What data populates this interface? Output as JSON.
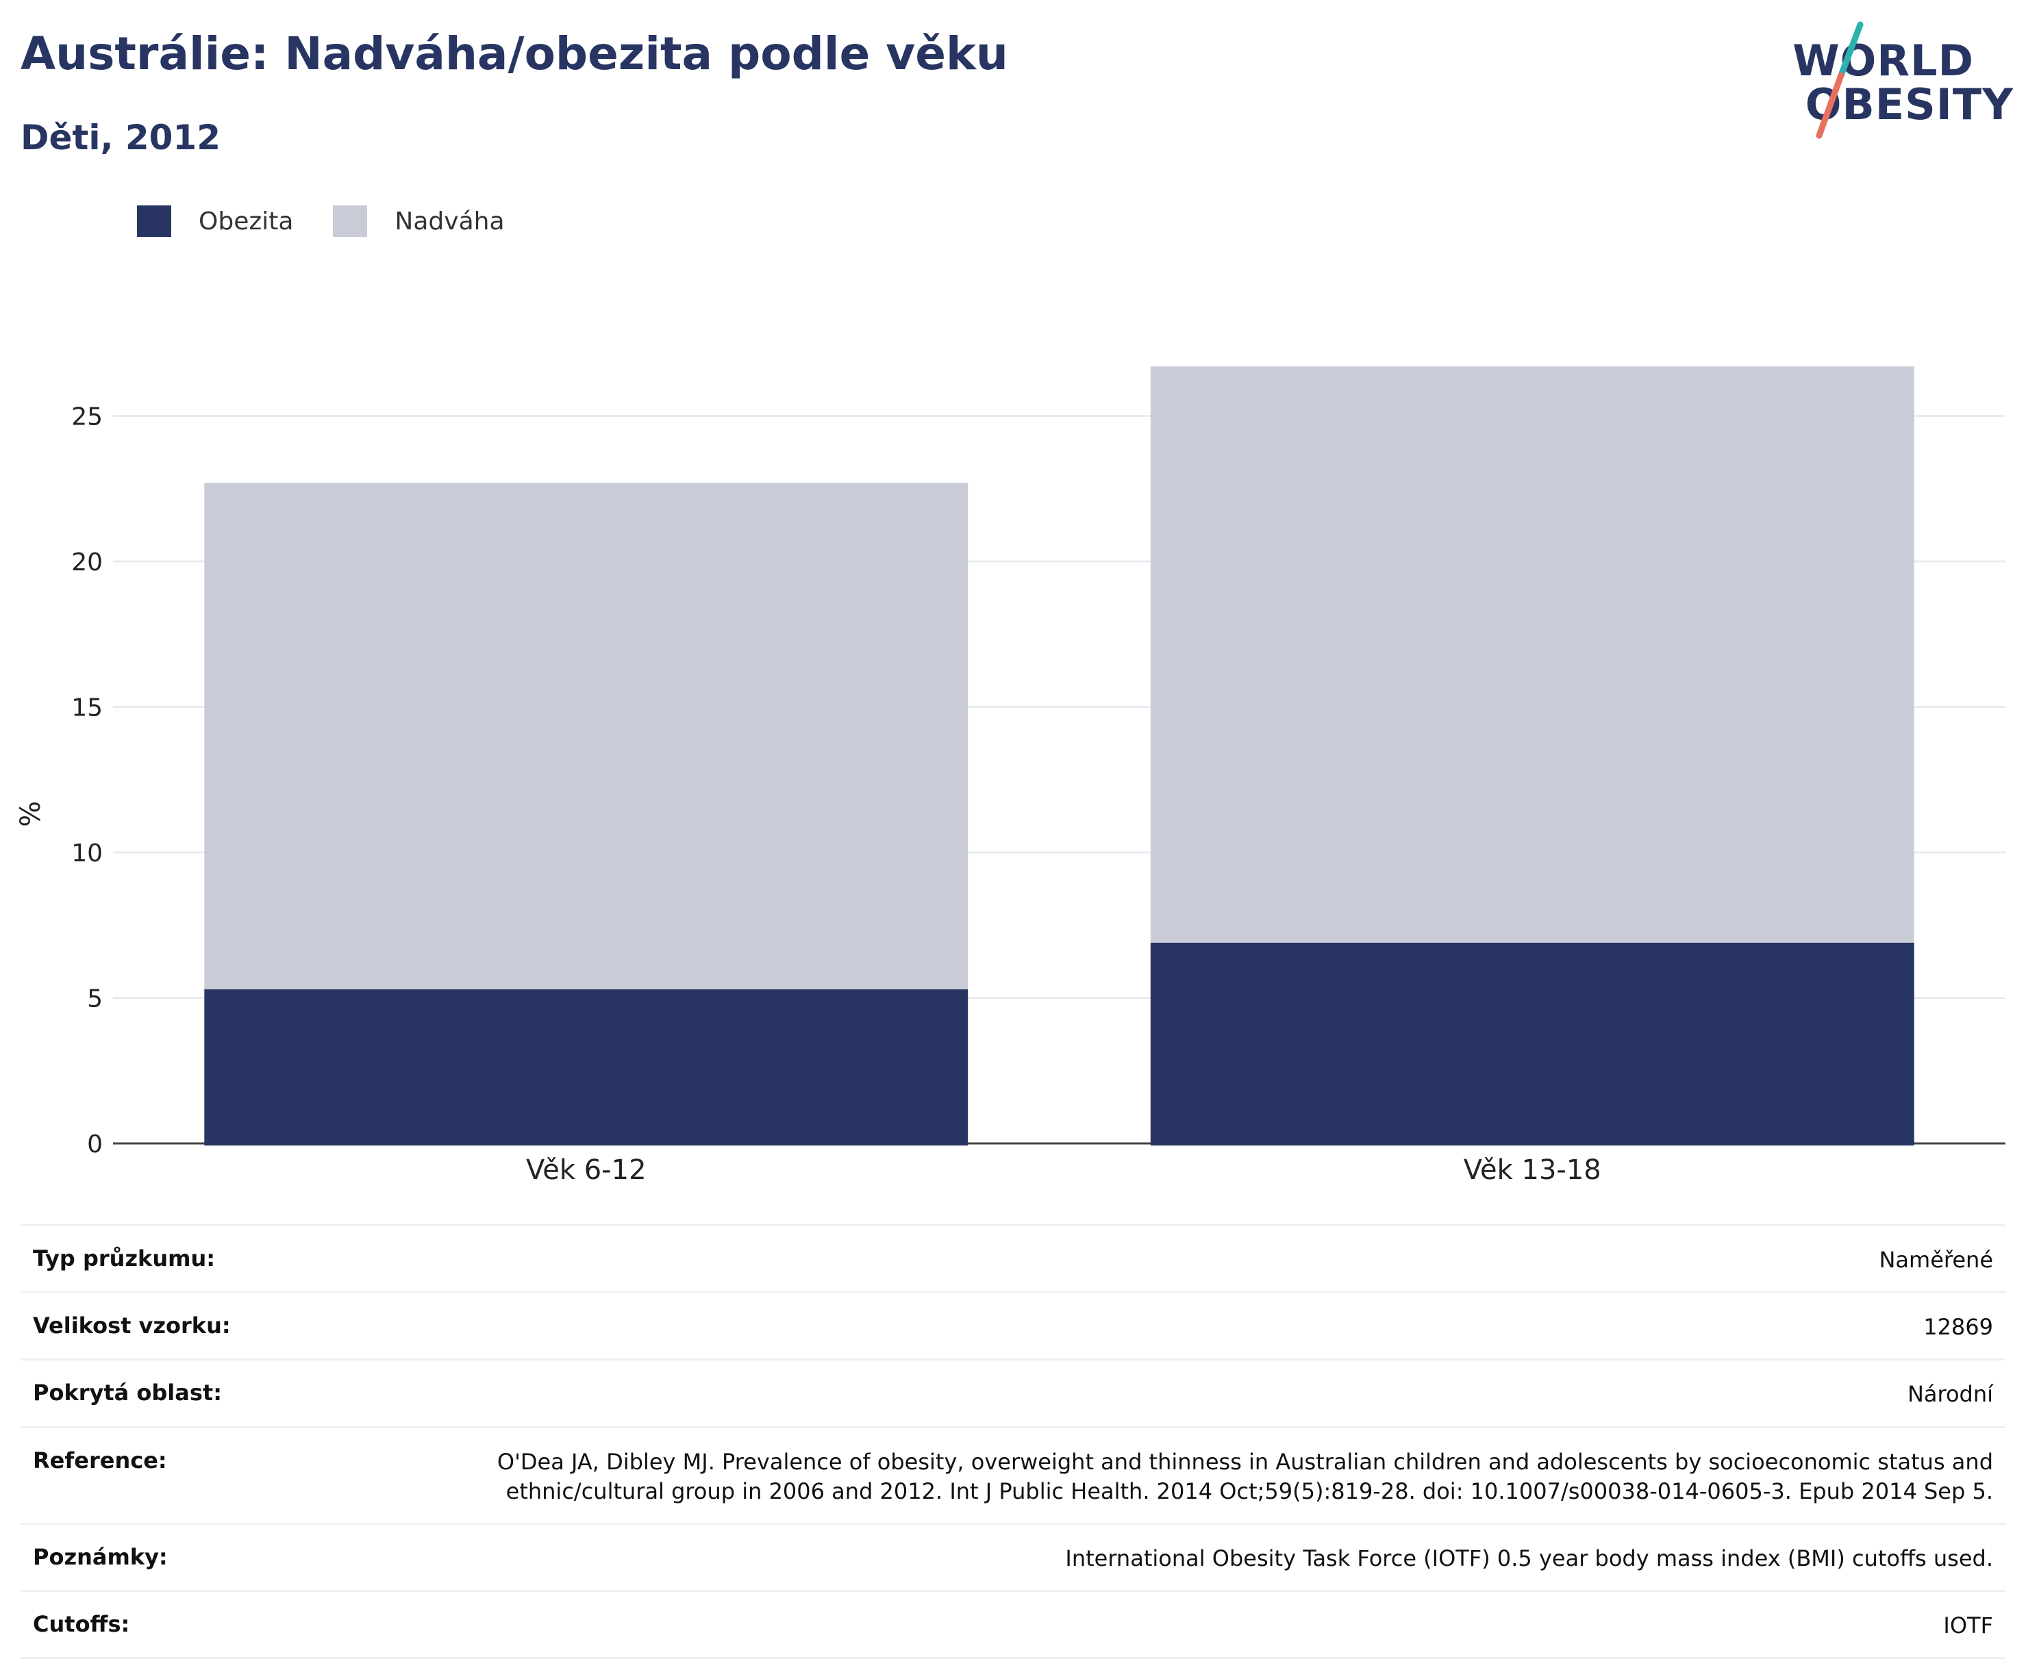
{
  "header": {
    "title": "Austrálie: Nadváha/obezita podle věku",
    "subtitle": "Děti, 2012"
  },
  "logo": {
    "line1": "WORLD",
    "line2": "OBESITY",
    "colors": {
      "text": "#283562",
      "slash_top": "#2bb3ae",
      "slash_bottom": "#e8705f"
    }
  },
  "legend": [
    {
      "label": "Obezita",
      "color": "#283562"
    },
    {
      "label": "Nadváha",
      "color": "#c9ccd7"
    }
  ],
  "chart_data": {
    "type": "bar",
    "stacked": true,
    "categories": [
      "Věk 6-12",
      "Věk 13-18"
    ],
    "series": [
      {
        "name": "Obezita",
        "values": [
          5.3,
          6.9
        ],
        "color": "#283562"
      },
      {
        "name": "Nadváha",
        "values": [
          17.4,
          19.8
        ],
        "color": "#c9ccd7"
      }
    ],
    "totals": [
      22.7,
      26.7
    ],
    "ylabel": "%",
    "ylim": [
      0,
      28
    ],
    "yticks": [
      0,
      5,
      10,
      15,
      20,
      25
    ],
    "grid": true,
    "legend_position": "top-left"
  },
  "meta": [
    {
      "label": "Typ průzkumu:",
      "value": "Naměřené"
    },
    {
      "label": "Velikost vzorku:",
      "value": "12869"
    },
    {
      "label": "Pokrytá oblast:",
      "value": "Národní"
    },
    {
      "label": "Reference:",
      "value": "O'Dea JA, Dibley MJ. Prevalence of obesity, overweight and thinness in Australian children and adolescents by socioeconomic status and ethnic/cultural group in 2006 and 2012. Int J Public Health. 2014 Oct;59(5):819-28. doi: 10.1007/s00038-014-0605-3. Epub 2014 Sep 5."
    },
    {
      "label": "Poznámky:",
      "value": "International Obesity Task Force (IOTF) 0.5 year body mass index (BMI) cutoffs used."
    },
    {
      "label": "Cutoffs:",
      "value": "IOTF"
    }
  ]
}
